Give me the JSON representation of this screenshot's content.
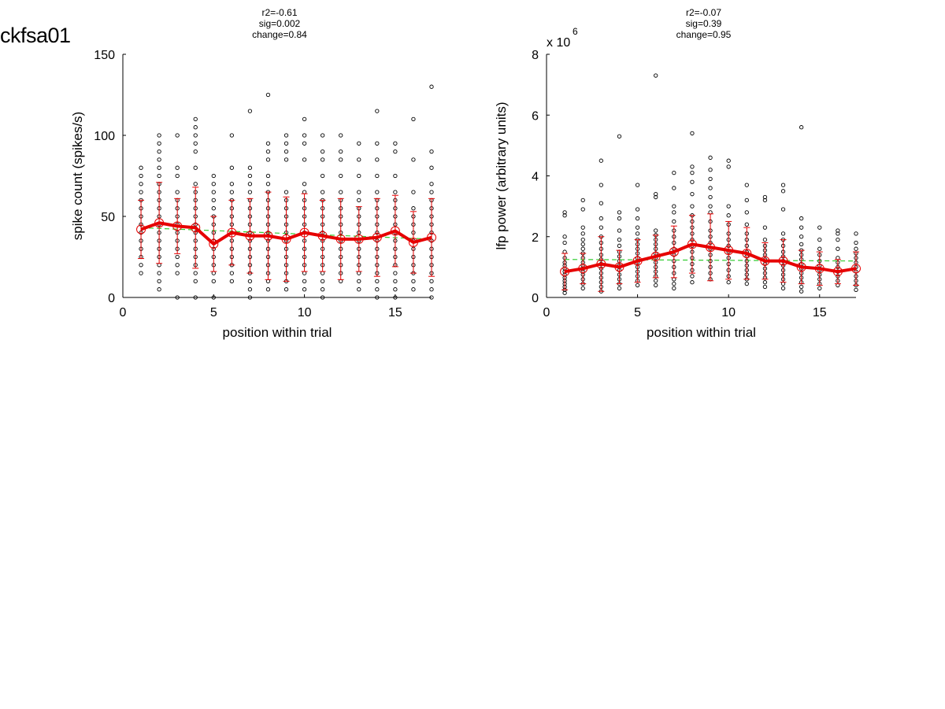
{
  "page": {
    "title": "ckfsa01"
  },
  "colors": {
    "mean": "#e60000",
    "fit": "#33cc33",
    "points": "#000000"
  },
  "chart_data": [
    {
      "type": "scatter",
      "stats": [
        "r2=-0.61",
        "sig=0.002",
        "change=0.84"
      ],
      "xlabel": "position within trial",
      "ylabel": "spike count (spikes/s)",
      "xlim": [
        0,
        17
      ],
      "ylim": [
        0,
        150
      ],
      "xticks": [
        0,
        5,
        10,
        15
      ],
      "yticks": [
        0,
        50,
        100,
        150
      ],
      "exponent_label": "",
      "mean": {
        "x": [
          1,
          2,
          3,
          4,
          5,
          6,
          7,
          8,
          9,
          10,
          11,
          12,
          13,
          14,
          15,
          16,
          17
        ],
        "y": [
          42,
          46,
          44,
          43,
          33,
          40,
          38,
          38,
          36,
          40,
          38,
          36,
          36,
          37,
          41,
          34,
          37
        ],
        "sd": [
          18,
          25,
          17,
          25,
          17,
          20,
          23,
          27,
          26,
          24,
          22,
          25,
          20,
          24,
          22,
          19,
          24
        ]
      },
      "fit": {
        "x": [
          1,
          17
        ],
        "y": [
          43,
          36
        ]
      },
      "points": [
        {
          "x": 1,
          "y": [
            15,
            20,
            25,
            30,
            35,
            40,
            45,
            50,
            55,
            60,
            65,
            70,
            75,
            80
          ]
        },
        {
          "x": 2,
          "y": [
            5,
            10,
            15,
            20,
            25,
            30,
            35,
            40,
            45,
            50,
            55,
            60,
            65,
            70,
            75,
            80,
            85,
            90,
            95,
            100
          ]
        },
        {
          "x": 3,
          "y": [
            0,
            15,
            20,
            25,
            30,
            35,
            40,
            45,
            50,
            55,
            60,
            65,
            75,
            80,
            100
          ]
        },
        {
          "x": 4,
          "y": [
            0,
            10,
            15,
            20,
            25,
            30,
            35,
            40,
            45,
            50,
            55,
            60,
            65,
            70,
            80,
            90,
            95,
            100,
            105,
            110
          ]
        },
        {
          "x": 5,
          "y": [
            0,
            10,
            15,
            20,
            25,
            30,
            35,
            40,
            45,
            50,
            55,
            60,
            65,
            70,
            75
          ]
        },
        {
          "x": 6,
          "y": [
            10,
            15,
            20,
            25,
            30,
            35,
            40,
            45,
            50,
            55,
            60,
            65,
            70,
            80,
            100
          ]
        },
        {
          "x": 7,
          "y": [
            0,
            5,
            10,
            15,
            20,
            25,
            30,
            35,
            40,
            45,
            50,
            55,
            60,
            65,
            70,
            75,
            80,
            115
          ]
        },
        {
          "x": 8,
          "y": [
            5,
            10,
            15,
            20,
            25,
            30,
            35,
            40,
            45,
            50,
            55,
            60,
            65,
            70,
            75,
            85,
            90,
            95,
            125
          ]
        },
        {
          "x": 9,
          "y": [
            5,
            10,
            15,
            20,
            25,
            30,
            35,
            40,
            45,
            50,
            55,
            60,
            65,
            85,
            90,
            95,
            100
          ]
        },
        {
          "x": 10,
          "y": [
            5,
            10,
            15,
            20,
            25,
            30,
            35,
            40,
            45,
            50,
            55,
            60,
            65,
            70,
            85,
            95,
            100,
            110
          ]
        },
        {
          "x": 11,
          "y": [
            0,
            5,
            10,
            15,
            20,
            25,
            30,
            35,
            40,
            45,
            50,
            55,
            60,
            65,
            75,
            85,
            90,
            100
          ]
        },
        {
          "x": 12,
          "y": [
            10,
            15,
            20,
            25,
            30,
            35,
            40,
            45,
            50,
            55,
            60,
            65,
            75,
            85,
            90,
            100
          ]
        },
        {
          "x": 13,
          "y": [
            5,
            10,
            15,
            20,
            25,
            30,
            35,
            40,
            45,
            50,
            55,
            60,
            65,
            75,
            85,
            95
          ]
        },
        {
          "x": 14,
          "y": [
            0,
            5,
            10,
            15,
            20,
            25,
            30,
            35,
            40,
            45,
            50,
            55,
            60,
            65,
            75,
            85,
            95,
            115
          ]
        },
        {
          "x": 15,
          "y": [
            0,
            5,
            10,
            15,
            20,
            25,
            30,
            35,
            40,
            45,
            50,
            55,
            60,
            65,
            75,
            90,
            95
          ]
        },
        {
          "x": 16,
          "y": [
            5,
            10,
            15,
            20,
            25,
            30,
            35,
            40,
            45,
            50,
            55,
            65,
            85,
            110
          ]
        },
        {
          "x": 17,
          "y": [
            0,
            5,
            10,
            15,
            20,
            25,
            30,
            35,
            40,
            45,
            50,
            55,
            60,
            65,
            70,
            80,
            90,
            130
          ]
        }
      ]
    },
    {
      "type": "scatter",
      "stats": [
        "r2=-0.07",
        "sig=0.39",
        "change=0.95"
      ],
      "xlabel": "position within trial",
      "ylabel": "lfp power (arbitrary units)",
      "xlim": [
        0,
        17
      ],
      "ylim": [
        0,
        8
      ],
      "xticks": [
        0,
        5,
        10,
        15
      ],
      "yticks": [
        0,
        2,
        4,
        6,
        8
      ],
      "exponent_label": "x 10",
      "exponent_power": "6",
      "mean": {
        "x": [
          1,
          2,
          3,
          4,
          5,
          6,
          7,
          8,
          9,
          10,
          11,
          12,
          13,
          14,
          15,
          16,
          17
        ],
        "y": [
          0.85,
          0.95,
          1.1,
          1.0,
          1.2,
          1.35,
          1.5,
          1.75,
          1.65,
          1.55,
          1.45,
          1.2,
          1.2,
          1.0,
          0.95,
          0.85,
          0.95
        ],
        "sd": [
          0.6,
          0.5,
          0.9,
          0.55,
          0.7,
          0.7,
          0.85,
          0.95,
          1.1,
          0.95,
          0.85,
          0.6,
          0.7,
          0.55,
          0.55,
          0.4,
          0.55
        ]
      },
      "fit": {
        "x": [
          1,
          17
        ],
        "y": [
          1.25,
          1.2
        ]
      },
      "points": [
        {
          "x": 1,
          "y": [
            0.15,
            0.25,
            0.35,
            0.45,
            0.55,
            0.65,
            0.75,
            0.85,
            0.95,
            1.05,
            1.15,
            1.3,
            1.5,
            1.8,
            2.0,
            2.7,
            2.8
          ]
        },
        {
          "x": 2,
          "y": [
            0.3,
            0.45,
            0.6,
            0.75,
            0.85,
            0.95,
            1.05,
            1.15,
            1.3,
            1.45,
            1.6,
            1.75,
            1.9,
            2.1,
            2.3,
            2.9,
            3.2
          ]
        },
        {
          "x": 3,
          "y": [
            0.2,
            0.35,
            0.5,
            0.65,
            0.8,
            0.95,
            1.1,
            1.25,
            1.4,
            1.6,
            1.8,
            2.0,
            2.3,
            2.6,
            3.1,
            3.7,
            4.5
          ]
        },
        {
          "x": 4,
          "y": [
            0.3,
            0.45,
            0.6,
            0.75,
            0.9,
            1.05,
            1.2,
            1.35,
            1.5,
            1.7,
            1.9,
            2.2,
            2.6,
            2.8,
            5.3
          ]
        },
        {
          "x": 5,
          "y": [
            0.4,
            0.55,
            0.7,
            0.85,
            1.0,
            1.15,
            1.3,
            1.45,
            1.6,
            1.75,
            1.9,
            2.1,
            2.3,
            2.6,
            2.9,
            3.7
          ]
        },
        {
          "x": 6,
          "y": [
            0.4,
            0.55,
            0.7,
            0.85,
            1.0,
            1.15,
            1.3,
            1.45,
            1.6,
            1.75,
            1.9,
            2.05,
            2.2,
            3.3,
            3.4,
            7.3
          ]
        },
        {
          "x": 7,
          "y": [
            0.3,
            0.45,
            0.6,
            0.8,
            1.0,
            1.2,
            1.4,
            1.6,
            1.8,
            2.0,
            2.2,
            2.5,
            2.8,
            3.0,
            3.6,
            4.1
          ]
        },
        {
          "x": 8,
          "y": [
            0.5,
            0.7,
            0.9,
            1.1,
            1.3,
            1.5,
            1.7,
            1.9,
            2.1,
            2.3,
            2.5,
            2.7,
            3.0,
            3.4,
            3.8,
            4.1,
            4.3,
            5.4
          ]
        },
        {
          "x": 9,
          "y": [
            0.6,
            0.8,
            1.0,
            1.2,
            1.4,
            1.6,
            1.8,
            2.0,
            2.2,
            2.5,
            2.8,
            3.0,
            3.3,
            3.6,
            3.9,
            4.2,
            4.6
          ]
        },
        {
          "x": 10,
          "y": [
            0.5,
            0.7,
            0.9,
            1.1,
            1.3,
            1.5,
            1.7,
            1.9,
            2.1,
            2.4,
            2.7,
            3.0,
            4.3,
            4.5
          ]
        },
        {
          "x": 11,
          "y": [
            0.45,
            0.6,
            0.75,
            0.9,
            1.05,
            1.2,
            1.35,
            1.5,
            1.7,
            1.9,
            2.1,
            2.4,
            2.8,
            3.2,
            3.7
          ]
        },
        {
          "x": 12,
          "y": [
            0.35,
            0.5,
            0.65,
            0.8,
            0.95,
            1.1,
            1.25,
            1.4,
            1.55,
            1.7,
            1.9,
            2.3,
            3.2,
            3.3
          ]
        },
        {
          "x": 13,
          "y": [
            0.3,
            0.45,
            0.6,
            0.75,
            0.9,
            1.05,
            1.2,
            1.35,
            1.5,
            1.7,
            1.9,
            2.1,
            2.9,
            3.5,
            3.7
          ]
        },
        {
          "x": 14,
          "y": [
            0.2,
            0.35,
            0.5,
            0.65,
            0.8,
            0.95,
            1.1,
            1.25,
            1.4,
            1.55,
            1.75,
            2.0,
            2.3,
            2.6,
            5.6
          ]
        },
        {
          "x": 15,
          "y": [
            0.3,
            0.45,
            0.6,
            0.75,
            0.9,
            1.05,
            1.2,
            1.4,
            1.6,
            1.9,
            2.3
          ]
        },
        {
          "x": 16,
          "y": [
            0.4,
            0.55,
            0.7,
            0.85,
            1.0,
            1.15,
            1.3,
            1.6,
            1.9,
            2.1,
            2.2
          ]
        },
        {
          "x": 17,
          "y": [
            0.25,
            0.4,
            0.55,
            0.7,
            0.85,
            1.0,
            1.15,
            1.3,
            1.45,
            1.6,
            1.8,
            2.1
          ]
        }
      ]
    }
  ]
}
